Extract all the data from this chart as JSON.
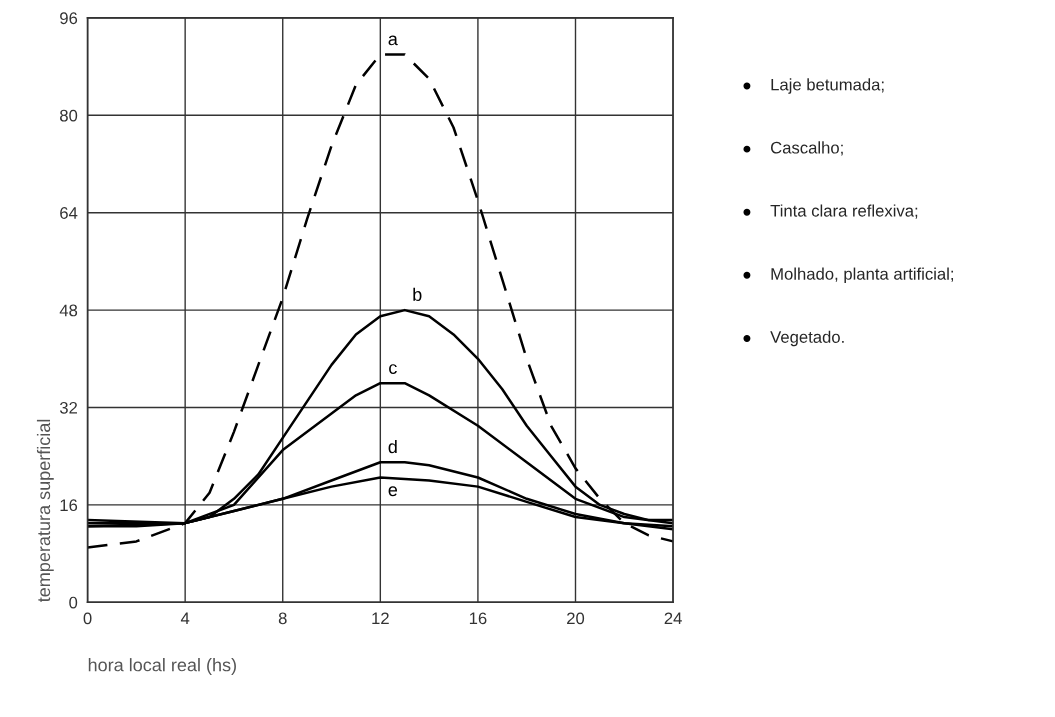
{
  "chart_data": {
    "type": "line",
    "xlabel": "hora local real (hs)",
    "ylabel": "temperatura superficial",
    "xlim": [
      0,
      24
    ],
    "ylim": [
      0,
      96
    ],
    "xticks": [
      0,
      4,
      8,
      12,
      16,
      20,
      24
    ],
    "yticks": [
      0,
      16,
      32,
      48,
      64,
      80,
      96
    ],
    "grid": true,
    "series": [
      {
        "name": "a",
        "color": "#000000",
        "line_style": "dashed",
        "x": [
          0,
          2,
          4,
          5,
          6,
          7,
          8,
          9,
          10,
          11,
          12,
          13,
          14,
          15,
          16,
          17,
          18,
          19,
          20,
          21,
          22,
          23,
          24
        ],
        "values": [
          9,
          10,
          13,
          18,
          28,
          39,
          50,
          63,
          75,
          85,
          90,
          90,
          86,
          78,
          66,
          53,
          40,
          29,
          22,
          17,
          13,
          11,
          10
        ]
      },
      {
        "name": "b",
        "color": "#000000",
        "line_style": "solid",
        "x": [
          0,
          2,
          4,
          5,
          6,
          7,
          8,
          9,
          10,
          11,
          12,
          13,
          14,
          15,
          16,
          17,
          18,
          19,
          20,
          21,
          22,
          23,
          24
        ],
        "values": [
          12.5,
          12.5,
          13,
          14,
          17,
          21,
          27,
          33,
          39,
          44,
          47,
          48,
          47,
          44,
          40,
          35,
          29,
          24,
          19,
          16,
          14.5,
          13.5,
          13.5
        ]
      },
      {
        "name": "c",
        "color": "#000000",
        "line_style": "solid",
        "x": [
          0,
          4,
          6,
          8,
          10,
          11,
          12,
          13,
          14,
          16,
          18,
          20,
          22,
          24
        ],
        "values": [
          13,
          13,
          16,
          25,
          31,
          34,
          36,
          36,
          34,
          29,
          23,
          17,
          14,
          13
        ]
      },
      {
        "name": "d",
        "color": "#000000",
        "line_style": "solid",
        "x": [
          0,
          4,
          6,
          8,
          10,
          12,
          13,
          14,
          16,
          18,
          20,
          22,
          24
        ],
        "values": [
          13.5,
          13,
          15,
          17,
          20,
          23,
          23,
          22.5,
          20.5,
          17,
          14.5,
          13,
          12.5
        ]
      },
      {
        "name": "e",
        "color": "#000000",
        "line_style": "solid",
        "x": [
          0,
          4,
          6,
          8,
          10,
          12,
          14,
          16,
          18,
          20,
          22,
          24
        ],
        "values": [
          12.5,
          13,
          15,
          17,
          19,
          20.5,
          20,
          19,
          16.5,
          14,
          13,
          12
        ]
      }
    ],
    "annotations": [
      "Laje betumada;",
      "Cascalho;",
      "Tinta clara reflexiva;",
      "Molhado, planta artificial;",
      "Vegetado."
    ]
  }
}
